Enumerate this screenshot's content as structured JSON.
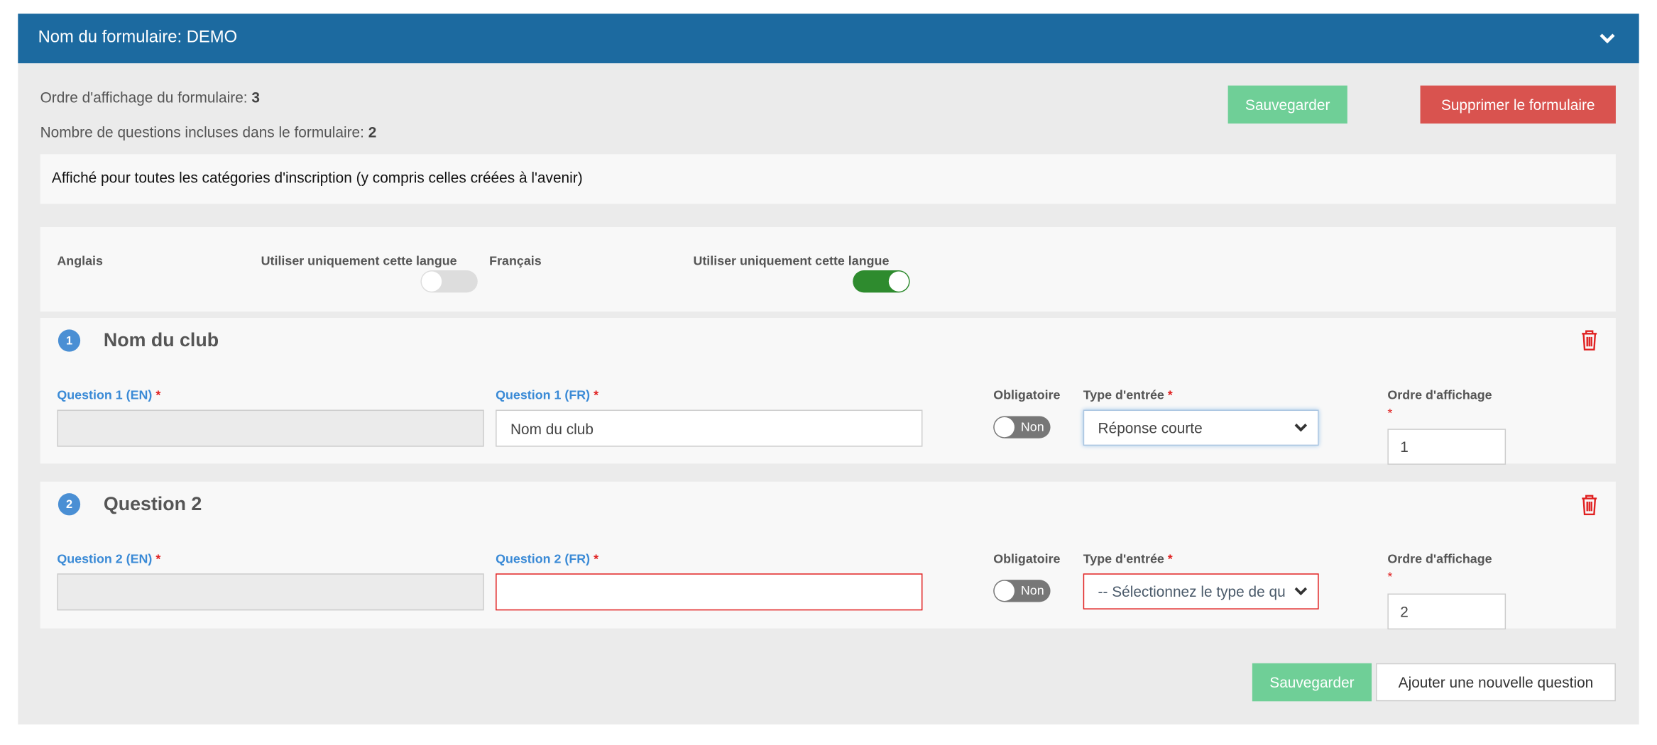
{
  "header": {
    "title": "Nom du formulaire: DEMO",
    "collapse_icon": "chevron-down-icon"
  },
  "info": {
    "order_label": "Ordre d'affichage du formulaire:",
    "order_value": "3",
    "count_label": "Nombre de questions incluses dans le formulaire:",
    "count_value": "2"
  },
  "buttons": {
    "save": "Sauvegarder",
    "delete_form": "Supprimer le formulaire",
    "save_bottom": "Sauvegarder",
    "add_question": "Ajouter une nouvelle question"
  },
  "notice": "Affiché pour toutes les catégories d'inscription (y compris celles créées à l'avenir)",
  "languages": [
    {
      "name": "Anglais",
      "only_label": "Utiliser uniquement cette langue",
      "only": false
    },
    {
      "name": "Français",
      "only_label": "Utiliser uniquement cette langue",
      "only": true
    }
  ],
  "questions": [
    {
      "number": "1",
      "title": "Nom du club",
      "en_label": "Question 1 (EN)",
      "fr_label": "Question 1 (FR)",
      "en_value": "",
      "fr_value": "Nom du club",
      "required_label": "Obligatoire",
      "required_state": "Non",
      "type_label": "Type d'entrée",
      "type_value": "Réponse courte",
      "order_label": "Ordre d'affichage",
      "order_value": "1"
    },
    {
      "number": "2",
      "title": "Question 2",
      "en_label": "Question 2 (EN)",
      "fr_label": "Question 2 (FR)",
      "en_value": "",
      "fr_value": "",
      "required_label": "Obligatoire",
      "required_state": "Non",
      "type_label": "Type d'entrée",
      "type_value": "-- Sélectionnez le type de qu",
      "order_label": "Ordre d'affichage",
      "order_value": "2"
    }
  ],
  "required_mark": "*",
  "colors": {
    "header": "#1c6aa0",
    "save": "#6fcf97",
    "danger": "#d9534f",
    "toggle_on": "#2e8b2e",
    "accent": "#3a8ad6"
  }
}
